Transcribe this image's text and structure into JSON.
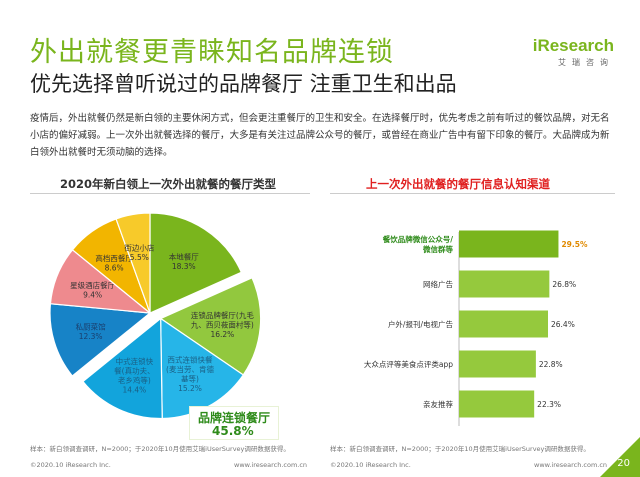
{
  "header": {
    "title": "外出就餐更青睐知名品牌连锁",
    "subtitle": "优先选择曾听说过的品牌餐厅 注重卫生和出品",
    "logo_main": "iResearch",
    "logo_sub": "艾瑞咨询"
  },
  "body_text": "疫情后，外出就餐仍然是新白领的主要休闲方式，但会更注重餐厅的卫生和安全。在选择餐厅时，优先考虑之前有听过的餐饮品牌，对无名小店的偏好减弱。上一次外出就餐选择的餐厅，大多是有关注过品牌公众号的餐厅，或曾经在商业广告中有留下印象的餐厅。大品牌成为新白领外出就餐时无须动脑的选择。",
  "pie_panel": {
    "title": "2020年新白领上一次外出就餐的餐厅类型",
    "source": "样本：新白领调查调研，N=2000；于2020年10月使用艾瑞iUserSurvey调研数据获得。",
    "callout_line1": "品牌连锁餐厅",
    "callout_line2": "45.8%"
  },
  "bar_panel": {
    "title": "上一次外出就餐的餐厅信息认知渠道",
    "source": "样本：新白领调查调研，N=2000；于2020年10月使用艾瑞iUserSurvey调研数据获得。"
  },
  "footer": {
    "left_copyright": "©2020.10 iResearch Inc.",
    "left_url": "www.iresearch.com.cn",
    "right_copyright": "©2020.10 iResearch Inc.",
    "right_url": "www.iresearch.com.cn",
    "page_number": "20"
  },
  "colors": {
    "accent": "#7ab51d",
    "red": "#e02020"
  },
  "chart_data": [
    {
      "type": "pie",
      "title": "2020年新白领上一次外出就餐的餐厅类型",
      "slices": [
        {
          "label": "本地餐厅",
          "value": 18.3,
          "color": "#7ab51d",
          "text_color": "#333"
        },
        {
          "label": "连锁品牌餐厅(九毛九、西贝莜面村等)",
          "label_lines": [
            "连锁品牌餐厅(九毛",
            "九、西贝莜面村等)"
          ],
          "value": 16.2,
          "color": "#92c83e",
          "text_color": "#333"
        },
        {
          "label": "西式连锁快餐(麦当劳、肯德基等)",
          "label_lines": [
            "西式连锁快餐",
            "(麦当劳、肯德",
            "基等)"
          ],
          "value": 15.2,
          "color": "#26b5e8",
          "text_color": "#1a5f85"
        },
        {
          "label": "中式连锁快餐(真功夫、老乡鸡等)",
          "label_lines": [
            "中式连锁快",
            "餐(真功夫、",
            "老乡鸡等)"
          ],
          "value": 14.4,
          "color": "#12a4dc",
          "text_color": "#1a5f85"
        },
        {
          "label": "私厨菜馆",
          "value": 12.3,
          "color": "#1783c7",
          "text_color": "#1a3f6e"
        },
        {
          "label": "星级酒店餐厅",
          "value": 9.4,
          "color": "#ee8a8e",
          "text_color": "#333"
        },
        {
          "label": "高档西餐厅",
          "value": 8.6,
          "color": "#f2b500",
          "text_color": "#333"
        },
        {
          "label": "街边小店",
          "value": 5.5,
          "color": "#f7ca2a",
          "text_color": "#333"
        }
      ],
      "pulled_group": [
        "连锁品牌餐厅(九毛九、西贝莜面村等)",
        "西式连锁快餐(麦当劳、肯德基等)",
        "中式连锁快餐(真功夫、老乡鸡等)"
      ]
    },
    {
      "type": "bar",
      "orientation": "horizontal",
      "title": "上一次外出就餐的餐厅信息认知渠道",
      "categories": [
        "餐饮品牌微信公众号/微信群等",
        "网络广告",
        "户外/报刊/电视广告",
        "大众点评等美食点评类app",
        "亲友推荐"
      ],
      "category_lines": [
        [
          "餐饮品牌微信公众号/",
          "微信群等"
        ],
        [
          "网络广告"
        ],
        [
          "户外/报刊/电视广告"
        ],
        [
          "大众点评等美食点评类app"
        ],
        [
          "亲友推荐"
        ]
      ],
      "values": [
        29.5,
        26.8,
        26.4,
        22.8,
        22.3
      ],
      "highlight_index": 0,
      "highlight_color": "#7ab51d",
      "bar_color": "#95c93d",
      "value_suffix": "%",
      "xlim": [
        0,
        35
      ]
    }
  ]
}
